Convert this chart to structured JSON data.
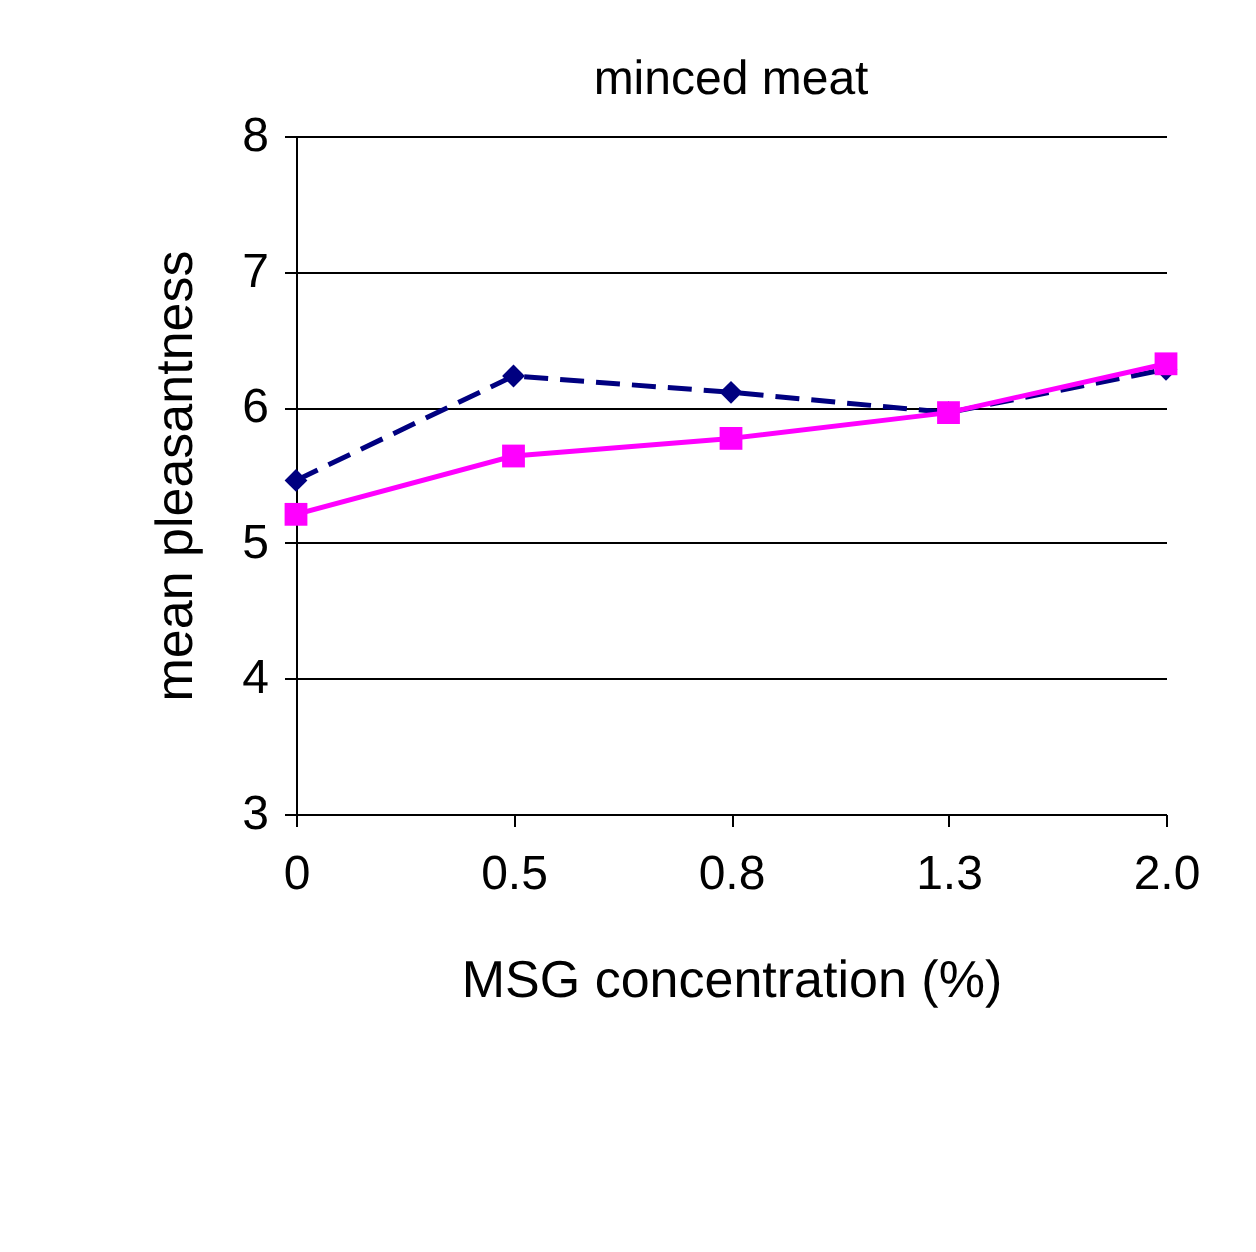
{
  "chart_data": {
    "type": "line",
    "title": "minced meat",
    "xlabel": "MSG concentration (%)",
    "ylabel": "mean pleasantness",
    "categories": [
      "0",
      "0.5",
      "0.8",
      "1.3",
      "2.0"
    ],
    "series": [
      {
        "color": "#000080",
        "values": [
          5.46,
          6.23,
          6.11,
          5.96,
          6.28
        ],
        "marker": "diamond",
        "line_style": "dashed"
      },
      {
        "color": "#ff00ff",
        "values": [
          5.21,
          5.64,
          5.77,
          5.96,
          6.32
        ],
        "marker": "square",
        "line_style": "solid"
      }
    ],
    "ylim": [
      3,
      8
    ],
    "yticks": [
      3,
      4,
      5,
      6,
      7,
      8
    ],
    "grid": "y"
  }
}
